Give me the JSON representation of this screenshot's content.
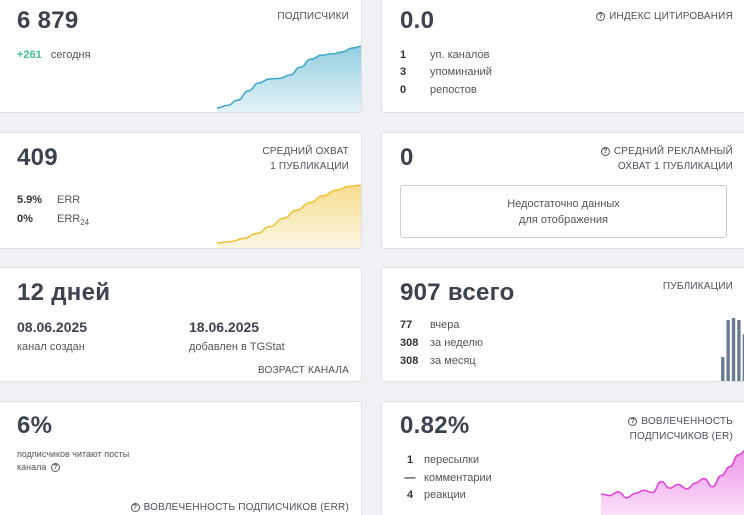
{
  "subscribers": {
    "value": "6 879",
    "label": "ПОДПИСЧИКИ",
    "delta": "+261",
    "delta_label": "сегодня",
    "chart_series": [
      0.06,
      0.1,
      0.18,
      0.32,
      0.44,
      0.5,
      0.51,
      0.56,
      0.68,
      0.8,
      0.86,
      0.88,
      0.91,
      0.97,
      1.0
    ],
    "color": "#3aa7c9"
  },
  "citation": {
    "value": "0.0",
    "label": "ИНДЕКС ЦИТИРОВАНИЯ",
    "rows": [
      {
        "n": "1",
        "text": "уп. каналов"
      },
      {
        "n": "3",
        "text": "упоминаний"
      },
      {
        "n": "0",
        "text": "репостов"
      }
    ]
  },
  "reach": {
    "value": "409",
    "label_line1": "СРЕДНИЙ ОХВАТ",
    "label_line2": "1 ПУБЛИКАЦИИ",
    "err_value": "5.9%",
    "err_label": "ERR",
    "err24_value": "0%",
    "err24_label": "ERR",
    "err24_sub": "24",
    "chart_series": [
      0.08,
      0.1,
      0.15,
      0.23,
      0.34,
      0.47,
      0.6,
      0.72,
      0.83,
      0.92,
      0.98,
      1.0
    ],
    "color": "#f0c030"
  },
  "ad_reach": {
    "value": "0",
    "label_line1": "СРЕДНИЙ РЕКЛАМНЫЙ",
    "label_line2": "ОХВАТ 1 ПУБЛИКАЦИИ",
    "nodata_line1": "Недостаточно данных",
    "nodata_line2": "для отображения"
  },
  "age": {
    "value": "12 дней",
    "created_date": "08.06.2025",
    "created_label": "канал создан",
    "added_date": "18.06.2025",
    "added_label": "добавлен в TGStat",
    "label": "ВОЗРАСТ КАНАЛА"
  },
  "publications": {
    "value": "907 всего",
    "label": "ПУБЛИКАЦИИ",
    "rows": [
      {
        "n": "77",
        "text": "вчера"
      },
      {
        "n": "308",
        "text": "за неделю"
      },
      {
        "n": "308",
        "text": "за месяц"
      }
    ],
    "bars": [
      0,
      0,
      0,
      0,
      0,
      0,
      0,
      0,
      0,
      0,
      0,
      0,
      0,
      0,
      0,
      0,
      0,
      0,
      0,
      0,
      0,
      0.4,
      0.97,
      1.0,
      0.97,
      0.75
    ],
    "color": "#6b7a90"
  },
  "err_card": {
    "value": "6%",
    "text_line1": "подписчиков читают посты",
    "text_line2": "канала",
    "label": "ВОВЛЕЧЕННОСТЬ ПОДПИСЧИКОВ (ERR)"
  },
  "er_card": {
    "value": "0.82%",
    "label_line1": "ВОВЛЕЧЕННОСТЬ",
    "label_line2": "ПОДПИСЧИКОВ (ER)",
    "rows": [
      {
        "n": "1",
        "text": "пересылки"
      },
      {
        "n": "—",
        "text": "комментарии"
      },
      {
        "n": "4",
        "text": "реакции"
      }
    ],
    "chart_series": [
      0.35,
      0.33,
      0.38,
      0.3,
      0.36,
      0.4,
      0.37,
      0.52,
      0.43,
      0.48,
      0.42,
      0.5,
      0.56,
      0.45,
      0.6,
      0.72,
      0.88,
      0.95
    ],
    "color": "#e23ed6"
  },
  "icons": {
    "info": "?"
  }
}
